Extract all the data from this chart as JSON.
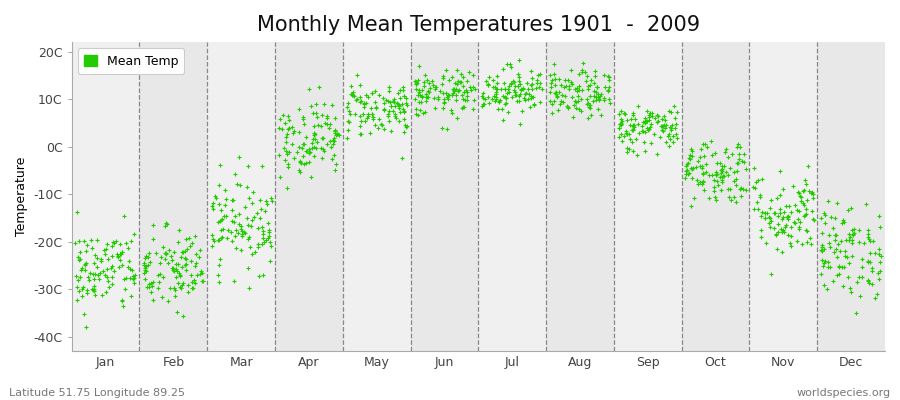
{
  "title": "Monthly Mean Temperatures 1901  -  2009",
  "ylabel": "Temperature",
  "xlabel_labels": [
    "Jan",
    "Feb",
    "Mar",
    "Apr",
    "May",
    "Jun",
    "Jul",
    "Aug",
    "Sep",
    "Oct",
    "Nov",
    "Dec"
  ],
  "ytick_labels": [
    "-40C",
    "-30C",
    "-20C",
    "-10C",
    "0C",
    "10C",
    "20C"
  ],
  "ytick_values": [
    -40,
    -30,
    -20,
    -10,
    0,
    10,
    20
  ],
  "ylim": [
    -43,
    22
  ],
  "dot_color": "#22cc00",
  "dot_size": 5,
  "plot_bg_light": "#f0f0f0",
  "plot_bg_dark": "#e8e8e8",
  "outer_bg_color": "#ffffff",
  "legend_label": "Mean Temp",
  "subtitle_left": "Latitude 51.75 Longitude 89.25",
  "subtitle_right": "worldspecies.org",
  "title_fontsize": 15,
  "label_fontsize": 9,
  "tick_fontsize": 9,
  "monthly_means": [
    -26,
    -26,
    -16,
    2,
    8,
    11,
    12,
    11,
    4,
    -5,
    -14,
    -22
  ],
  "monthly_stds": [
    4.5,
    4.5,
    5,
    4,
    3,
    2.5,
    2.5,
    2.5,
    2.5,
    3.5,
    4.5,
    5
  ],
  "n_years": 109,
  "seed": 42
}
